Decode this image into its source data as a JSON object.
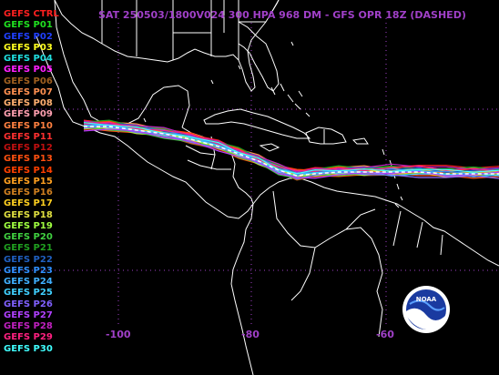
{
  "title": "SAT 250503/1800V024  300 HPA 968 DM - GFS OPR 18Z (DASHED)",
  "legend": [
    {
      "label": "GEFS CTRL",
      "color": "#ff2020"
    },
    {
      "label": "GEFS P01",
      "color": "#20e020"
    },
    {
      "label": "GEFS P02",
      "color": "#2040ff"
    },
    {
      "label": "GEFS P03",
      "color": "#ffff20"
    },
    {
      "label": "GEFS P04",
      "color": "#20e0e0"
    },
    {
      "label": "GEFS P05",
      "color": "#ff20ff"
    },
    {
      "label": "GEFS P06",
      "color": "#a06020"
    },
    {
      "label": "GEFS P07",
      "color": "#ff9050"
    },
    {
      "label": "GEFS P08",
      "color": "#ffb070"
    },
    {
      "label": "GEFS P09",
      "color": "#ffa0b0"
    },
    {
      "label": "GEFS P10",
      "color": "#ff8040"
    },
    {
      "label": "GEFS P11",
      "color": "#ff3030"
    },
    {
      "label": "GEFS P12",
      "color": "#c01010"
    },
    {
      "label": "GEFS P13",
      "color": "#ff5010"
    },
    {
      "label": "GEFS P14",
      "color": "#ff4000"
    },
    {
      "label": "GEFS P15",
      "color": "#ffa020"
    },
    {
      "label": "GEFS P16",
      "color": "#d08020"
    },
    {
      "label": "GEFS P17",
      "color": "#ffd020"
    },
    {
      "label": "GEFS P18",
      "color": "#e0e040"
    },
    {
      "label": "GEFS P19",
      "color": "#a0ff40"
    },
    {
      "label": "GEFS P20",
      "color": "#40d040"
    },
    {
      "label": "GEFS P21",
      "color": "#20a020"
    },
    {
      "label": "GEFS P22",
      "color": "#2060c0"
    },
    {
      "label": "GEFS P23",
      "color": "#3090ff"
    },
    {
      "label": "GEFS P24",
      "color": "#40b0ff"
    },
    {
      "label": "GEFS P25",
      "color": "#40d0ff"
    },
    {
      "label": "GEFS P26",
      "color": "#8060ff"
    },
    {
      "label": "GEFS P27",
      "color": "#b040ff"
    },
    {
      "label": "GEFS P28",
      "color": "#c020c0"
    },
    {
      "label": "GEFS P29",
      "color": "#ff2080"
    },
    {
      "label": "GEFS P30",
      "color": "#40ffff"
    }
  ],
  "lon_labels": [
    {
      "text": "-100",
      "lon": -100
    },
    {
      "text": "-80",
      "lon": -80
    },
    {
      "text": "-60",
      "lon": -60
    }
  ],
  "colors": {
    "background": "#000000",
    "coast": "#ffffff",
    "grid": "#a040c8",
    "title": "#a040c8"
  },
  "logo_text": "NOAA"
}
